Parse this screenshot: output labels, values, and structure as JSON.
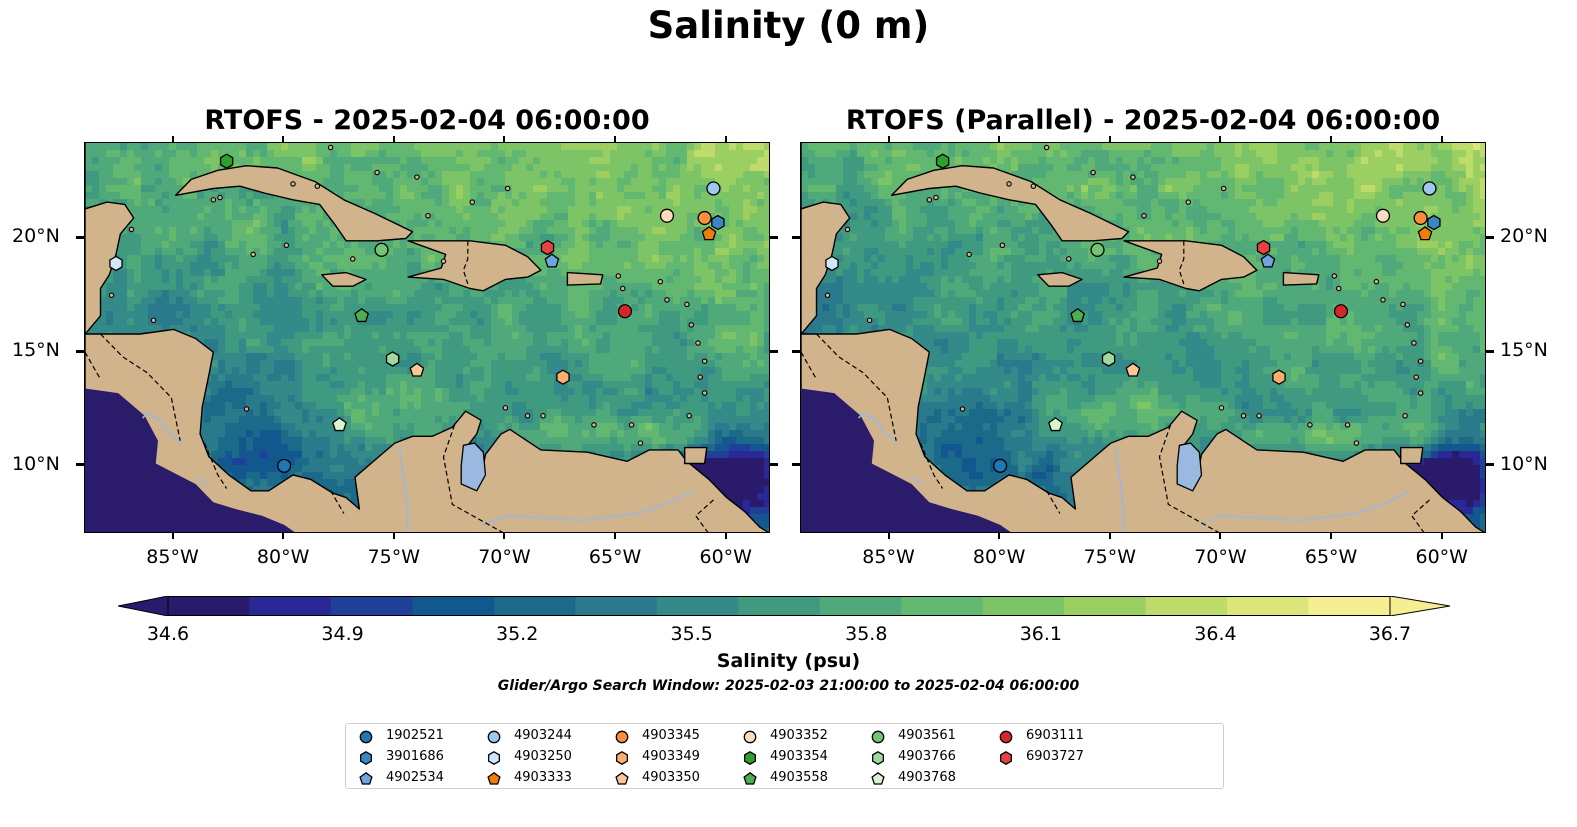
{
  "figure": {
    "title": "Salinity (0 m)"
  },
  "panels": [
    {
      "title": "RTOFS - 2025-02-04 06:00:00",
      "variant": "a"
    },
    {
      "title": "RTOFS (Parallel) - 2025-02-04 06:00:00",
      "variant": "b"
    }
  ],
  "map": {
    "extent_lon": [
      -89,
      -58
    ],
    "extent_lat": [
      7,
      24.2
    ],
    "lon_ticks": [
      {
        "lon": -85,
        "label": "85°W"
      },
      {
        "lon": -80,
        "label": "80°W"
      },
      {
        "lon": -75,
        "label": "75°W"
      },
      {
        "lon": -70,
        "label": "70°W"
      },
      {
        "lon": -65,
        "label": "65°W"
      },
      {
        "lon": -60,
        "label": "60°W"
      }
    ],
    "lat_ticks": [
      {
        "lat": 20,
        "label": "20°N"
      },
      {
        "lat": 15,
        "label": "15°N"
      },
      {
        "lat": 10,
        "label": "10°N"
      }
    ],
    "colors": {
      "land": "#d2b48c",
      "lake": "#9bb8e0",
      "deep_low_salinity": "#2b1b6b",
      "mid_salinity": "#3f9a7e",
      "high_salinity": "#f5ee92"
    }
  },
  "colorbar": {
    "label": "Salinity (psu)",
    "min": 34.6,
    "max": 36.7,
    "ticks": [
      "34.6",
      "34.9",
      "35.2",
      "35.5",
      "35.8",
      "36.1",
      "36.4",
      "36.7"
    ],
    "colormap": [
      "#2a1a6b",
      "#2a2897",
      "#1f3f98",
      "#13578f",
      "#1b6a8a",
      "#2a7a8c",
      "#338a88",
      "#3f9a80",
      "#4fa97a",
      "#62b870",
      "#7dc466",
      "#9bcf62",
      "#bddc6c",
      "#dbe57a",
      "#f5ee92"
    ],
    "extend": "both"
  },
  "search_window": "Glider/Argo Search Window: 2025-02-03 21:00:00 to 2025-02-04 06:00:00",
  "floats": [
    {
      "id": "1902521",
      "marker": "circle",
      "color": "#1f77b4",
      "lon": -80.0,
      "lat": 10.0
    },
    {
      "id": "3901686",
      "marker": "hexagon",
      "color": "#3b86c8",
      "lon": -60.4,
      "lat": 20.7
    },
    {
      "id": "4902534",
      "marker": "pentagon",
      "color": "#6ea6e0",
      "lon": -67.9,
      "lat": 19.0
    },
    {
      "id": "4903244",
      "marker": "circle",
      "color": "#9ec9ee",
      "lon": -60.6,
      "lat": 22.2
    },
    {
      "id": "4903250",
      "marker": "hexagon",
      "color": "#cfe7fb",
      "lon": -87.6,
      "lat": 18.9
    },
    {
      "id": "4903333",
      "marker": "pentagon",
      "color": "#f07d0a",
      "lon": -60.8,
      "lat": 20.2
    },
    {
      "id": "4903345",
      "marker": "circle",
      "color": "#fd8d3c",
      "lon": -61.0,
      "lat": 20.9
    },
    {
      "id": "4903349",
      "marker": "hexagon",
      "color": "#fdae6b",
      "lon": -67.4,
      "lat": 13.9
    },
    {
      "id": "4903350",
      "marker": "pentagon",
      "color": "#fdc695",
      "lon": -74.0,
      "lat": 14.2
    },
    {
      "id": "4903352",
      "marker": "circle",
      "color": "#fddcbd",
      "lon": -62.7,
      "lat": 21.0
    },
    {
      "id": "4903354",
      "marker": "hexagon",
      "color": "#2ca02c",
      "lon": -82.6,
      "lat": 23.4
    },
    {
      "id": "4903558",
      "marker": "pentagon",
      "color": "#4fae4f",
      "lon": -76.5,
      "lat": 16.6
    },
    {
      "id": "4903561",
      "marker": "circle",
      "color": "#74c476",
      "lon": -75.6,
      "lat": 19.5
    },
    {
      "id": "4903766",
      "marker": "hexagon",
      "color": "#a1d99b",
      "lon": -75.1,
      "lat": 14.7
    },
    {
      "id": "4903768",
      "marker": "pentagon",
      "color": "#d9f5d0",
      "lon": -77.5,
      "lat": 11.8
    },
    {
      "id": "6903111",
      "marker": "circle",
      "color": "#d62728",
      "lon": -64.6,
      "lat": 16.8
    },
    {
      "id": "6903727",
      "marker": "hexagon",
      "color": "#e8413f",
      "lon": -68.1,
      "lat": 19.6
    }
  ]
}
